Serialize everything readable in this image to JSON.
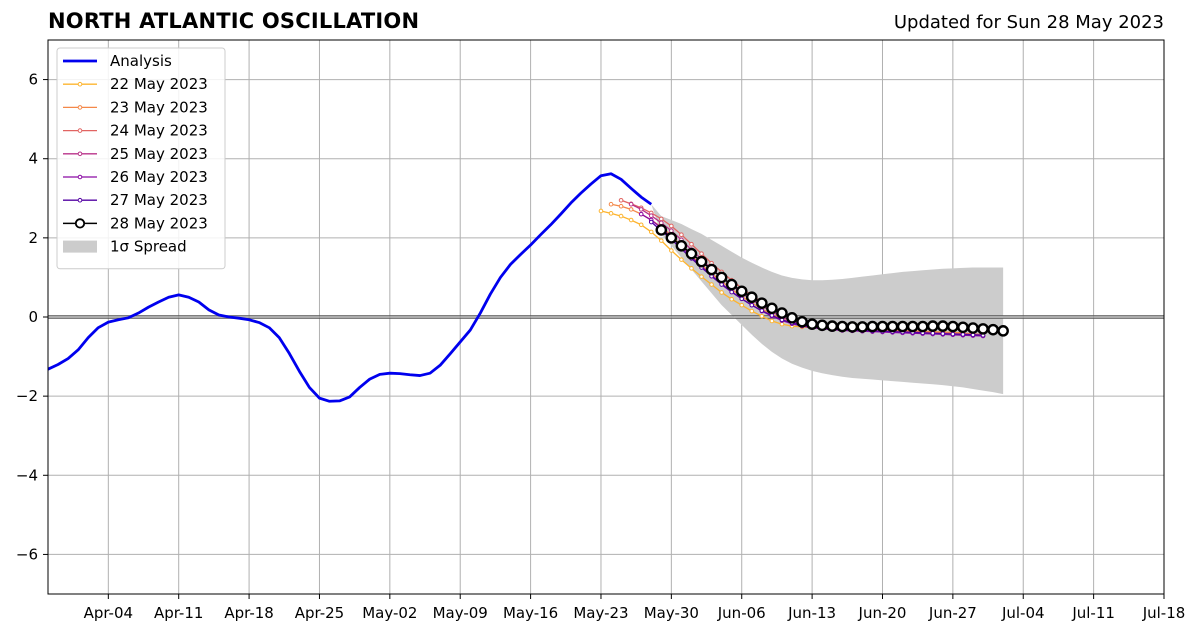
{
  "header": {
    "title": "NORTH ATLANTIC OSCILLATION",
    "updated": "Updated for Sun 28 May 2023"
  },
  "chart_data": {
    "type": "line",
    "title": "NORTH ATLANTIC OSCILLATION",
    "xlabel": "",
    "ylabel": "",
    "x_range": [
      "2023-03-29",
      "2023-07-18"
    ],
    "ylim": [
      -7,
      7
    ],
    "y_ticks": [
      -6,
      -4,
      -2,
      0,
      2,
      4,
      6
    ],
    "y_tick_labels": [
      "−6",
      "−4",
      "−2",
      "0",
      "2",
      "4",
      "6"
    ],
    "x_ticks": [
      "2023-04-04",
      "2023-04-11",
      "2023-04-18",
      "2023-04-25",
      "2023-05-02",
      "2023-05-09",
      "2023-05-16",
      "2023-05-23",
      "2023-05-30",
      "2023-06-06",
      "2023-06-13",
      "2023-06-20",
      "2023-06-27",
      "2023-07-04",
      "2023-07-11",
      "2023-07-18"
    ],
    "x_tick_labels": [
      "Apr-04",
      "Apr-11",
      "Apr-18",
      "Apr-25",
      "May-02",
      "May-09",
      "May-16",
      "May-23",
      "May-30",
      "Jun-06",
      "Jun-13",
      "Jun-20",
      "Jun-27",
      "Jul-04",
      "Jul-11",
      "Jul-18"
    ],
    "grid": true,
    "legend_position": "top-left",
    "colors": {
      "analysis": "#0000ee",
      "spread": "#cccccc",
      "zero_line": "#555555",
      "grid": "#b0b0b0"
    },
    "series": [
      {
        "name": "Analysis",
        "kind": "analysis",
        "color": "#0000ee",
        "start": "2023-03-29",
        "values": [
          -1.32,
          -1.2,
          -1.05,
          -0.83,
          -0.52,
          -0.27,
          -0.13,
          -0.07,
          -0.02,
          0.1,
          0.25,
          0.38,
          0.5,
          0.56,
          0.5,
          0.38,
          0.18,
          0.05,
          0.0,
          -0.03,
          -0.07,
          -0.14,
          -0.27,
          -0.52,
          -0.92,
          -1.37,
          -1.78,
          -2.05,
          -2.13,
          -2.12,
          -2.02,
          -1.78,
          -1.57,
          -1.45,
          -1.42,
          -1.43,
          -1.46,
          -1.48,
          -1.42,
          -1.22,
          -0.93,
          -0.63,
          -0.33,
          0.1,
          0.58,
          1.0,
          1.33,
          1.58,
          1.82,
          2.08,
          2.33,
          2.6,
          2.88,
          3.13,
          3.36,
          3.57,
          3.62,
          3.48,
          3.25,
          3.03,
          2.85
        ]
      },
      {
        "name": "22 May 2023",
        "kind": "forecast",
        "color": "#fdb42f",
        "start": "2023-05-23",
        "values": [
          2.68,
          2.62,
          2.55,
          2.45,
          2.33,
          2.15,
          1.93,
          1.68,
          1.45,
          1.23,
          1.02,
          0.82,
          0.62,
          0.45,
          0.3,
          0.15,
          0.02,
          -0.1,
          -0.18,
          -0.23,
          -0.25,
          -0.27,
          -0.28,
          -0.3,
          -0.3,
          -0.31,
          -0.31,
          -0.32,
          -0.32,
          -0.33,
          -0.34,
          -0.35,
          -0.36,
          -0.37,
          -0.38,
          -0.39,
          -0.4
        ]
      },
      {
        "name": "23 May 2023",
        "kind": "forecast",
        "color": "#f48849",
        "start": "2023-05-24",
        "values": [
          2.85,
          2.8,
          2.72,
          2.6,
          2.45,
          2.28,
          2.06,
          1.8,
          1.55,
          1.32,
          1.1,
          0.9,
          0.7,
          0.52,
          0.36,
          0.2,
          0.07,
          -0.05,
          -0.15,
          -0.21,
          -0.25,
          -0.27,
          -0.29,
          -0.3,
          -0.31,
          -0.32,
          -0.32,
          -0.33,
          -0.34,
          -0.35,
          -0.36,
          -0.37,
          -0.38,
          -0.39,
          -0.4,
          -0.41,
          -0.42
        ]
      },
      {
        "name": "24 May 2023",
        "kind": "forecast",
        "color": "#e16462",
        "start": "2023-05-25",
        "values": [
          2.95,
          2.86,
          2.76,
          2.63,
          2.48,
          2.3,
          2.08,
          1.84,
          1.6,
          1.36,
          1.14,
          0.93,
          0.73,
          0.55,
          0.38,
          0.22,
          0.08,
          -0.04,
          -0.14,
          -0.21,
          -0.26,
          -0.29,
          -0.31,
          -0.32,
          -0.33,
          -0.34,
          -0.35,
          -0.35,
          -0.36,
          -0.37,
          -0.38,
          -0.39,
          -0.4,
          -0.41,
          -0.42,
          -0.43,
          -0.44
        ]
      },
      {
        "name": "25 May 2023",
        "kind": "forecast",
        "color": "#b83289",
        "start": "2023-05-26",
        "values": [
          2.85,
          2.72,
          2.56,
          2.38,
          2.18,
          1.95,
          1.7,
          1.46,
          1.22,
          1.0,
          0.8,
          0.6,
          0.43,
          0.28,
          0.13,
          0.0,
          -0.11,
          -0.19,
          -0.25,
          -0.29,
          -0.31,
          -0.33,
          -0.34,
          -0.35,
          -0.36,
          -0.37,
          -0.38,
          -0.39,
          -0.4,
          -0.41,
          -0.42,
          -0.43,
          -0.44,
          -0.45,
          -0.46,
          -0.47
        ]
      },
      {
        "name": "26 May 2023",
        "kind": "forecast",
        "color": "#8b0aa5",
        "start": "2023-05-27",
        "values": [
          2.6,
          2.45,
          2.25,
          2.02,
          1.78,
          1.52,
          1.28,
          1.05,
          0.84,
          0.64,
          0.46,
          0.3,
          0.15,
          0.02,
          -0.09,
          -0.17,
          -0.23,
          -0.27,
          -0.3,
          -0.32,
          -0.34,
          -0.35,
          -0.36,
          -0.37,
          -0.38,
          -0.39,
          -0.4,
          -0.41,
          -0.42,
          -0.43,
          -0.44,
          -0.45,
          -0.46,
          -0.47,
          -0.48
        ]
      },
      {
        "name": "27 May 2023",
        "kind": "forecast",
        "color": "#5302a3",
        "start": "2023-05-28",
        "values": [
          2.4,
          2.18,
          1.96,
          1.72,
          1.48,
          1.25,
          1.03,
          0.82,
          0.63,
          0.46,
          0.3,
          0.16,
          0.04,
          -0.07,
          -0.15,
          -0.21,
          -0.25,
          -0.28,
          -0.3,
          -0.32,
          -0.33,
          -0.34,
          -0.35,
          -0.36,
          -0.37,
          -0.38,
          -0.39,
          -0.4,
          -0.41,
          -0.42,
          -0.43,
          -0.44,
          -0.45,
          -0.46
        ]
      },
      {
        "name": "28 May 2023",
        "kind": "current",
        "color": "#000000",
        "start": "2023-05-29",
        "values": [
          2.2,
          2.0,
          1.8,
          1.6,
          1.4,
          1.2,
          1.0,
          0.82,
          0.65,
          0.5,
          0.35,
          0.22,
          0.1,
          -0.02,
          -0.12,
          -0.18,
          -0.21,
          -0.23,
          -0.24,
          -0.25,
          -0.25,
          -0.24,
          -0.24,
          -0.24,
          -0.24,
          -0.24,
          -0.24,
          -0.23,
          -0.23,
          -0.24,
          -0.26,
          -0.28,
          -0.3,
          -0.32,
          -0.35
        ]
      }
    ],
    "spread": {
      "name": "1σ Spread",
      "start": "2023-05-28",
      "upper": [
        2.85,
        2.55,
        2.45,
        2.35,
        2.22,
        2.1,
        1.95,
        1.8,
        1.65,
        1.5,
        1.37,
        1.25,
        1.14,
        1.05,
        0.99,
        0.95,
        0.93,
        0.93,
        0.94,
        0.96,
        0.99,
        1.02,
        1.05,
        1.08,
        1.11,
        1.14,
        1.16,
        1.18,
        1.2,
        1.22,
        1.23,
        1.24,
        1.25,
        1.25,
        1.25,
        1.25
      ],
      "lower": [
        2.85,
        2.1,
        1.8,
        1.5,
        1.2,
        0.9,
        0.6,
        0.3,
        0.05,
        -0.2,
        -0.45,
        -0.68,
        -0.88,
        -1.05,
        -1.18,
        -1.28,
        -1.36,
        -1.42,
        -1.47,
        -1.51,
        -1.54,
        -1.56,
        -1.58,
        -1.6,
        -1.62,
        -1.64,
        -1.66,
        -1.68,
        -1.7,
        -1.72,
        -1.75,
        -1.78,
        -1.82,
        -1.86,
        -1.9,
        -1.95
      ]
    }
  }
}
